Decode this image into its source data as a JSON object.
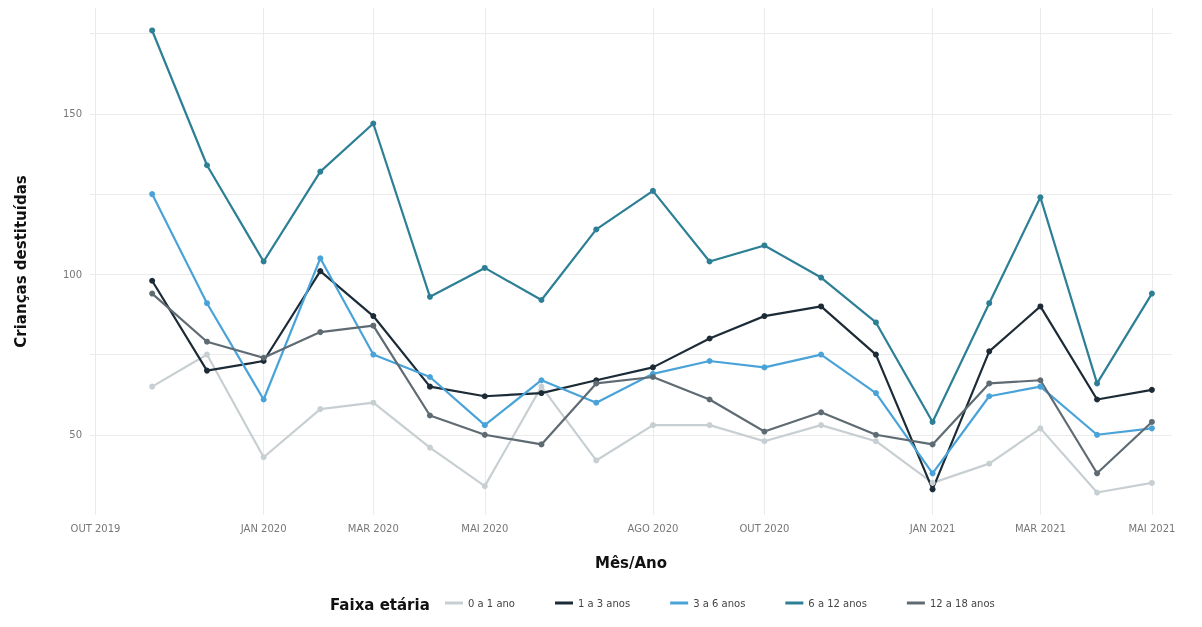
{
  "chart_data": {
    "type": "line",
    "xlabel": "Mês/Ano",
    "ylabel": "Crianças destituídas",
    "legend_title": "Faixa etária",
    "x": [
      "2019-11",
      "2019-12",
      "2020-01",
      "2020-02",
      "2020-03",
      "2020-04",
      "2020-05",
      "2020-06",
      "2020-07",
      "2020-08",
      "2020-09",
      "2020-10",
      "2020-11",
      "2020-12",
      "2021-01",
      "2021-02",
      "2021-03",
      "2021-04",
      "2021-05"
    ],
    "series": [
      {
        "name": "0 a 1 ano",
        "color": "#c8cfd2",
        "values": [
          65,
          75,
          43,
          58,
          60,
          46,
          34,
          65,
          42,
          53,
          53,
          48,
          53,
          48,
          35,
          41,
          52,
          32,
          35
        ]
      },
      {
        "name": "1 a 3 anos",
        "color": "#1c2b36",
        "values": [
          98,
          70,
          73,
          101,
          87,
          65,
          62,
          63,
          67,
          71,
          80,
          87,
          90,
          75,
          33,
          76,
          90,
          61,
          64
        ]
      },
      {
        "name": "3 a 6 anos",
        "color": "#4aa3d8",
        "values": [
          125,
          91,
          61,
          105,
          75,
          68,
          53,
          67,
          60,
          69,
          73,
          71,
          75,
          63,
          38,
          62,
          65,
          50,
          52
        ]
      },
      {
        "name": "6 a 12 anos",
        "color": "#2c7f95",
        "values": [
          176,
          134,
          104,
          132,
          147,
          93,
          102,
          92,
          114,
          126,
          104,
          109,
          99,
          85,
          54,
          91,
          124,
          66,
          94
        ]
      },
      {
        "name": "12 a 18 anos",
        "color": "#5f6b73",
        "values": [
          94,
          79,
          74,
          82,
          84,
          56,
          50,
          47,
          66,
          68,
          61,
          51,
          57,
          50,
          47,
          66,
          67,
          38,
          54
        ]
      }
    ],
    "xlim": [
      "2019-09-28",
      "2021-05-12"
    ],
    "xticks": [
      {
        "value": "2019-10",
        "label": "OUT 2019"
      },
      {
        "value": "2020-01",
        "label": "JAN 2020"
      },
      {
        "value": "2020-03",
        "label": "MAR 2020"
      },
      {
        "value": "2020-05",
        "label": "MAI 2020"
      },
      {
        "value": "2020-08",
        "label": "AGO 2020"
      },
      {
        "value": "2020-10",
        "label": "OUT 2020"
      },
      {
        "value": "2021-01",
        "label": "JAN 2021"
      },
      {
        "value": "2021-03",
        "label": "MAR 2021"
      },
      {
        "value": "2021-05",
        "label": "MAI 2021"
      }
    ],
    "ylim": [
      25,
      183
    ],
    "yticks": [
      50,
      {
        "value": 75,
        "label": null
      },
      100,
      {
        "value": 125,
        "label": null
      },
      150,
      {
        "value": 175,
        "label": null
      }
    ],
    "grid": true,
    "legend": "bottom",
    "marker": "circle",
    "line_style": "solid"
  }
}
